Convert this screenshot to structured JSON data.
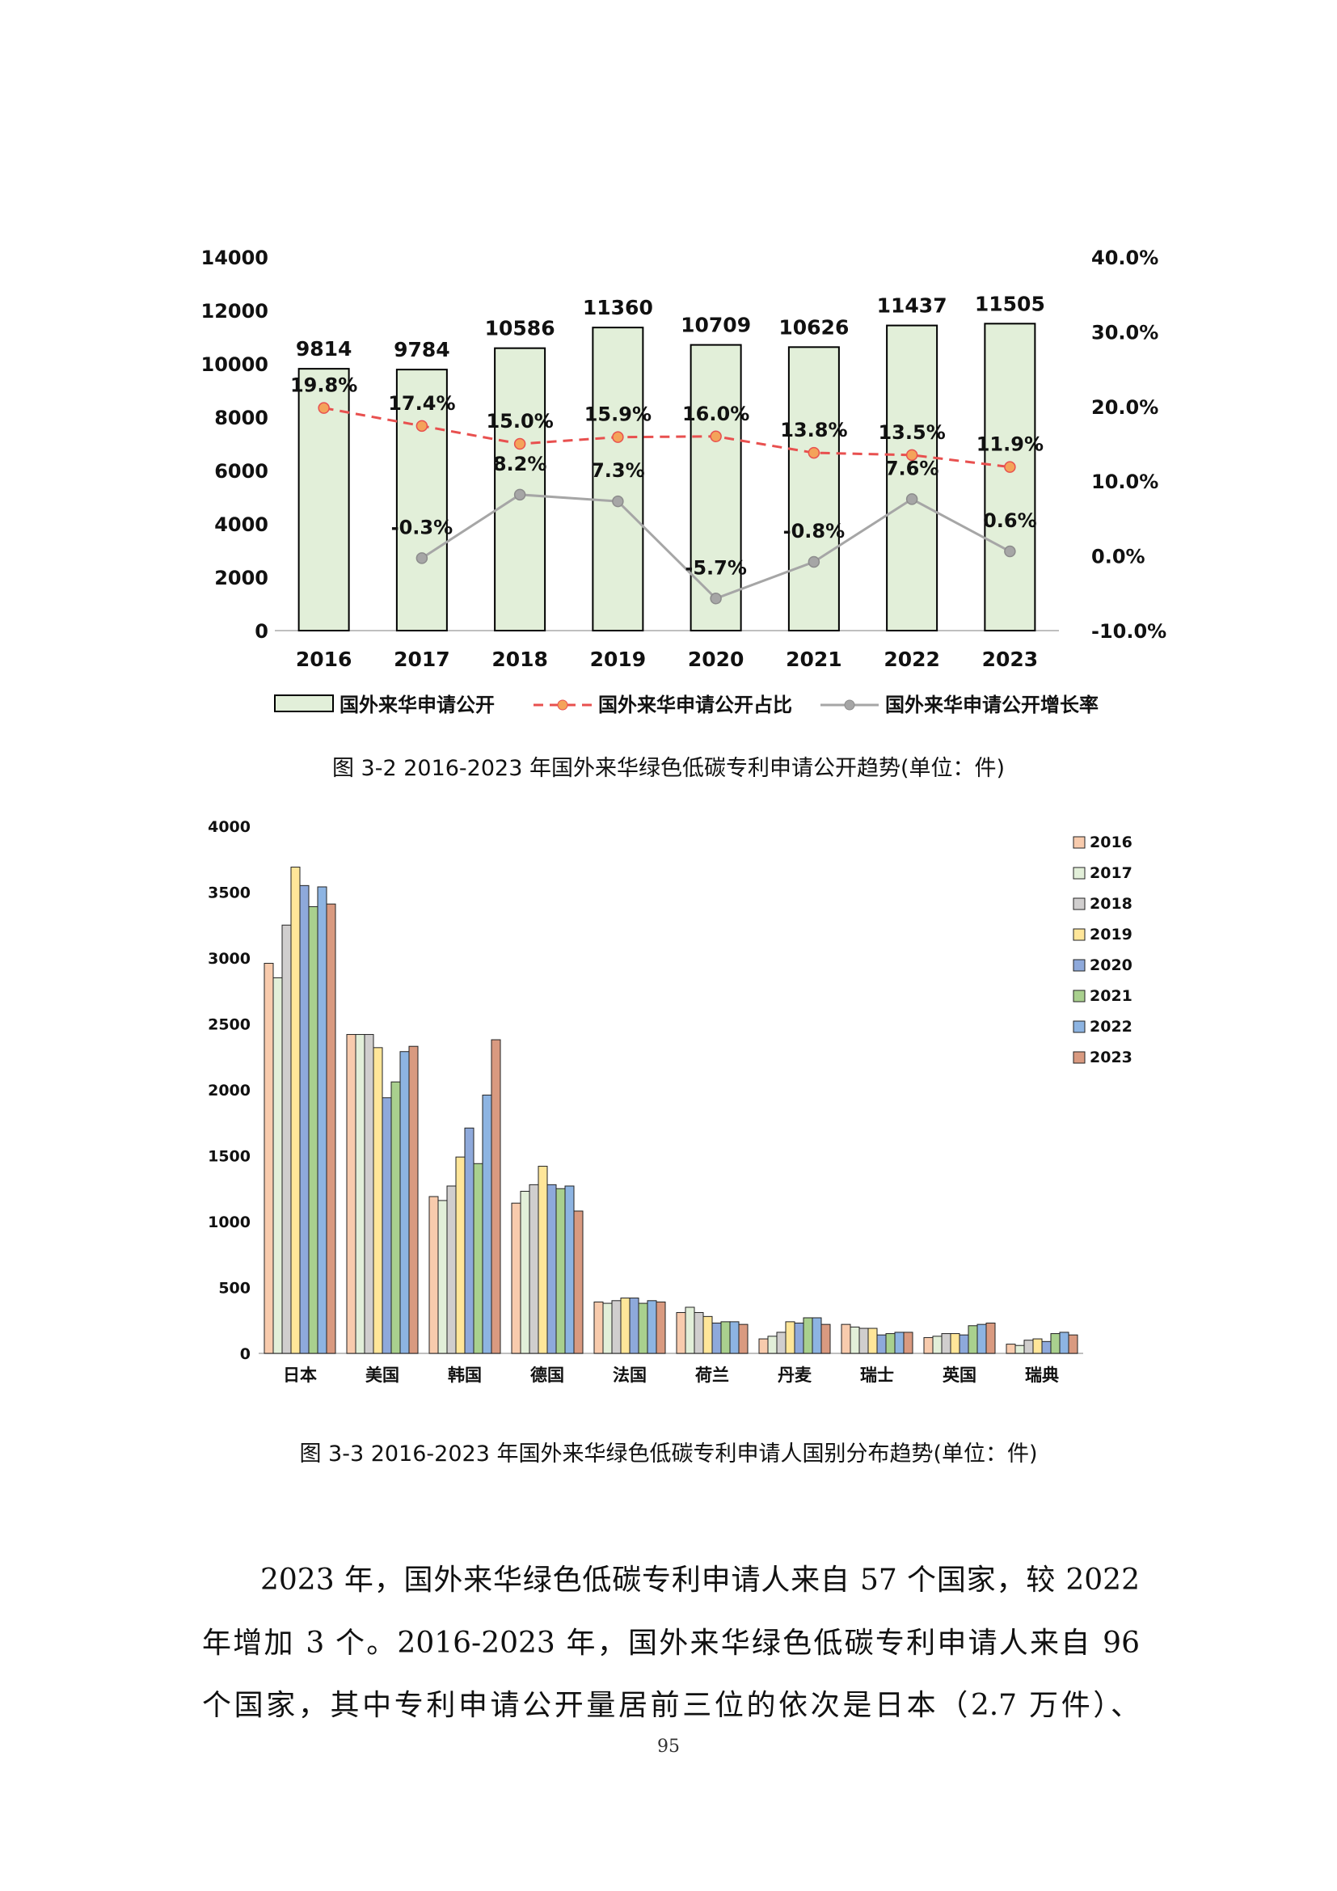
{
  "charts_meta": {
    "chart1_caption": "图 3-2 2016-2023 年国外来华绿色低碳专利申请公开趋势(单位：件)",
    "chart2_caption": "图 3-3 2016-2023 年国外来华绿色低碳专利申请人国别分布趋势(单位：件)"
  },
  "paragraph": {
    "line1": "2023 年，国外来华绿色低碳专利申请人来自 57 个国家，较 2022",
    "line2": "年增加 3 个。2016-2023 年，国外来华绿色低碳专利申请人来自 96",
    "line3": "个国家，其中专利申请公开量居前三位的依次是日本（2.7 万件）、"
  },
  "page_number": "95",
  "chart_data": [
    {
      "type": "bar",
      "categories": [
        "2016",
        "2017",
        "2018",
        "2019",
        "2020",
        "2021",
        "2022",
        "2023"
      ],
      "series": [
        {
          "name": "国外来华申请公开",
          "kind": "bar",
          "axis": "left",
          "values": [
            9814,
            9784,
            10586,
            11360,
            10709,
            10626,
            11437,
            11505
          ],
          "labels": [
            "9814",
            "9784",
            "10586",
            "11360",
            "10709",
            "10626",
            "11437",
            "11505"
          ],
          "color": "#e2efd9"
        },
        {
          "name": "国外来华申请公开占比",
          "kind": "line",
          "axis": "right",
          "dashed": true,
          "values": [
            19.8,
            17.4,
            15.0,
            15.9,
            16.0,
            13.8,
            13.5,
            11.9
          ],
          "labels": [
            "19.8%",
            "17.4%",
            "15.0%",
            "15.9%",
            "16.0%",
            "13.8%",
            "13.5%",
            "11.9%"
          ],
          "color": "#e8504f",
          "marker_color": "#f4a35a"
        },
        {
          "name": "国外来华申请公开增长率",
          "kind": "line",
          "axis": "right",
          "dashed": false,
          "values": [
            null,
            -0.3,
            8.2,
            7.3,
            -5.7,
            -0.8,
            7.6,
            0.6
          ],
          "labels": [
            "",
            "-0.3%",
            "8.2%",
            "7.3%",
            "-5.7%",
            "-0.8%",
            "7.6%",
            "0.6%"
          ],
          "color": "#a6a6a6"
        }
      ],
      "y_left": {
        "min": 0,
        "max": 14000,
        "ticks": [
          "0",
          "2000",
          "4000",
          "6000",
          "8000",
          "10000",
          "12000",
          "14000"
        ]
      },
      "y_right": {
        "min": -10,
        "max": 40,
        "ticks": [
          "-10.0%",
          "0.0%",
          "10.0%",
          "20.0%",
          "30.0%",
          "40.0%"
        ]
      },
      "grid": false,
      "legend_position": "bottom"
    },
    {
      "type": "bar",
      "categories": [
        "日本",
        "美国",
        "韩国",
        "德国",
        "法国",
        "荷兰",
        "丹麦",
        "瑞士",
        "英国",
        "瑞典"
      ],
      "series": [
        {
          "name": "2016",
          "color": "#f8cbad",
          "values": [
            2960,
            2420,
            1190,
            1140,
            390,
            310,
            110,
            220,
            120,
            70
          ]
        },
        {
          "name": "2017",
          "color": "#e2efd9",
          "values": [
            2850,
            2420,
            1160,
            1230,
            380,
            350,
            130,
            200,
            130,
            60
          ]
        },
        {
          "name": "2018",
          "color": "#d0cece",
          "values": [
            3250,
            2420,
            1270,
            1280,
            400,
            310,
            160,
            190,
            150,
            100
          ]
        },
        {
          "name": "2019",
          "color": "#ffe699",
          "values": [
            3690,
            2320,
            1490,
            1420,
            420,
            280,
            240,
            190,
            150,
            110
          ]
        },
        {
          "name": "2020",
          "color": "#8ea9db",
          "values": [
            3550,
            1940,
            1710,
            1280,
            420,
            230,
            230,
            140,
            140,
            90
          ]
        },
        {
          "name": "2021",
          "color": "#a9d08e",
          "values": [
            3390,
            2060,
            1440,
            1250,
            380,
            240,
            270,
            150,
            210,
            150
          ]
        },
        {
          "name": "2022",
          "color": "#8db4e2",
          "values": [
            3540,
            2290,
            1960,
            1270,
            400,
            240,
            270,
            160,
            220,
            160
          ]
        },
        {
          "name": "2023",
          "color": "#d99a80",
          "values": [
            3410,
            2330,
            2380,
            1080,
            390,
            220,
            220,
            160,
            230,
            140
          ]
        }
      ],
      "y": {
        "min": 0,
        "max": 4000,
        "ticks": [
          "0",
          "500",
          "1000",
          "1500",
          "2000",
          "2500",
          "3000",
          "3500",
          "4000"
        ]
      },
      "grid": false,
      "legend_position": "right"
    }
  ]
}
